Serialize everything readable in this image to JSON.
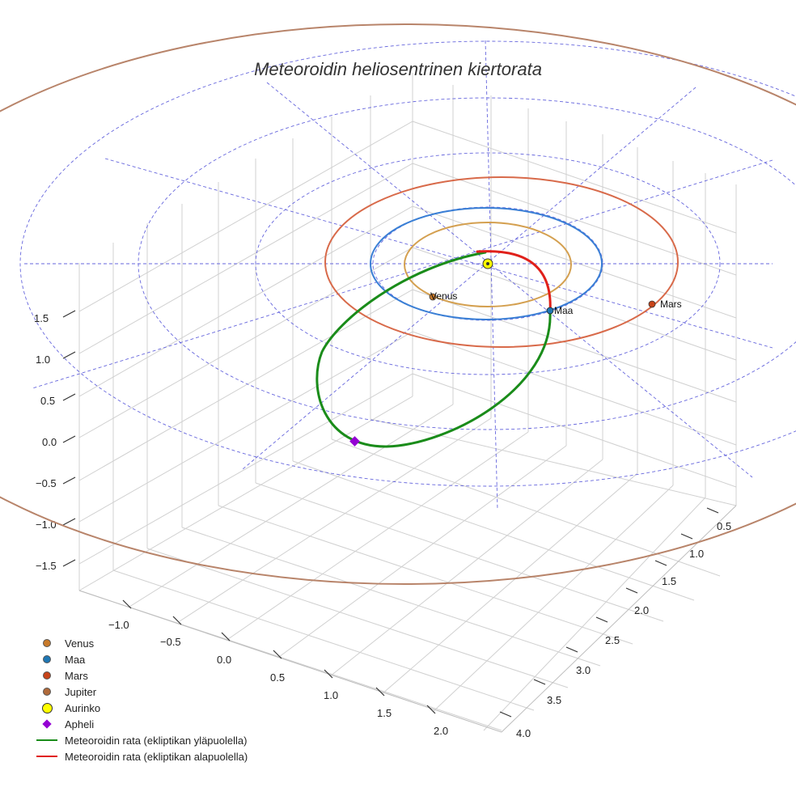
{
  "chart_data": {
    "type": "3d-orbit",
    "title": "Meteoroidin heliosentrinen kiertorata",
    "axes": {
      "x": {
        "ticks": [
          "−1.0",
          "−0.5",
          "0.0",
          "0.5",
          "1.0",
          "1.5",
          "2.0"
        ]
      },
      "y": {
        "ticks": [
          "0.5",
          "1.0",
          "1.5",
          "2.0",
          "2.5",
          "3.0",
          "3.5",
          "4.0"
        ]
      },
      "z": {
        "ticks": [
          "1.5",
          "1.0",
          "0.5",
          "0.0",
          "−0.5",
          "−1.0",
          "−1.5"
        ]
      }
    },
    "orbits": [
      {
        "name": "Venus",
        "radius_au": 0.72,
        "color": "#d4a050"
      },
      {
        "name": "Maa",
        "radius_au": 1.0,
        "color": "#3a7fd5"
      },
      {
        "name": "Mars",
        "radius_au": 1.52,
        "color": "#d86a4a"
      },
      {
        "name": "Jupiter",
        "radius_au": 5.2,
        "color": "#b8846a"
      }
    ],
    "planet_labels": [
      "Venus",
      "Maa",
      "Mars"
    ],
    "legend": [
      {
        "label": "Venus",
        "symbol": "dot",
        "color": "#c87a2a"
      },
      {
        "label": "Maa",
        "symbol": "dot",
        "color": "#1f77b4"
      },
      {
        "label": "Mars",
        "symbol": "dot",
        "color": "#c8441a"
      },
      {
        "label": "Jupiter",
        "symbol": "dot",
        "color": "#b06a3a"
      },
      {
        "label": "Aurinko",
        "symbol": "sun",
        "color": "#ffff00"
      },
      {
        "label": "Apheli",
        "symbol": "diamond",
        "color": "#9400d3"
      },
      {
        "label": "Meteoroidin rata (ekliptikan yläpuolella)",
        "symbol": "line",
        "color": "#1a8c1a"
      },
      {
        "label": "Meteoroidin rata (ekliptikan alapuolella)",
        "symbol": "line",
        "color": "#e0201a"
      }
    ],
    "meteoroid_orbit": {
      "color_above": "#1a8c1a",
      "color_below": "#e0201a"
    },
    "grid_color": "#6666dd"
  }
}
